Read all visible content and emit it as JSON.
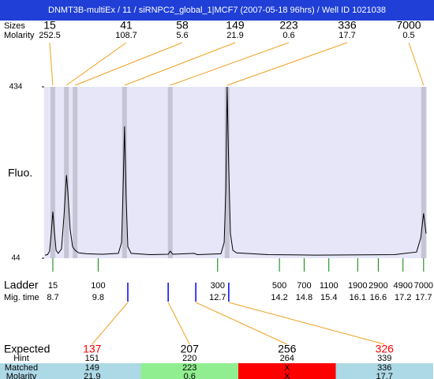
{
  "header": {
    "title": "DNMT3B-multiEx / 11 / siRNPC2_global_1|MCF7 (2007-05-18 96hrs) / Well ID 1021038"
  },
  "peaks": {
    "size_label": "Sizes",
    "molarity_label": "Molarity",
    "sizes": [
      15,
      41,
      58,
      149,
      223,
      336,
      7000
    ],
    "molarity": [
      252.5,
      108.7,
      5.6,
      21.9,
      0.6,
      17.7,
      0.5
    ],
    "times": [
      8.7,
      9.03,
      9.24,
      10.44,
      11.55,
      12.93,
      17.7
    ]
  },
  "chart_data": {
    "type": "line",
    "ylabel": "Fluo.",
    "x": [
      8.51,
      8.57,
      8.62,
      8.66,
      8.7,
      8.74,
      8.78,
      8.83,
      8.91,
      8.97,
      9.03,
      9.06,
      9.12,
      9.18,
      9.24,
      9.33,
      9.52,
      9.91,
      10.29,
      10.37,
      10.4,
      10.44,
      10.48,
      10.52,
      10.6,
      11.06,
      11.5,
      11.55,
      11.61,
      12.13,
      12.21,
      12.78,
      12.86,
      12.9,
      12.93,
      12.97,
      13.01,
      13.07,
      13.16,
      13.93,
      15.08,
      16.99,
      17.53,
      17.63,
      17.7,
      17.76
    ],
    "series": [
      {
        "color": "#000000",
        "values": [
          51,
          52,
          60,
          100,
          150,
          100,
          62,
          55,
          65,
          140,
          233,
          200,
          110,
          70,
          62,
          56,
          54,
          53,
          55,
          80,
          180,
          344,
          180,
          70,
          55,
          52,
          53,
          60,
          53,
          55,
          52,
          54,
          80,
          200,
          434,
          250,
          100,
          62,
          56,
          52,
          51,
          52,
          58,
          90,
          146,
          100
        ]
      }
    ],
    "xlim": [
      8.49,
      17.78
    ],
    "ylim": [
      44,
      434
    ],
    "yticks": [
      44,
      434
    ]
  },
  "ladder": {
    "label": "Ladder",
    "time_label": "Mig. time",
    "color": "#008000",
    "sizes": [
      15,
      100,
      300,
      500,
      700,
      1100,
      1900,
      2900,
      4900,
      7000
    ],
    "times": [
      8.7,
      9.8,
      12.7,
      14.2,
      14.8,
      15.4,
      16.1,
      16.6,
      17.2,
      17.7
    ]
  },
  "expected": {
    "label": "Expected",
    "hint_label": "Hint",
    "matched_label": "Matched",
    "molarity_label": "Molarity",
    "values": [
      137,
      207,
      256,
      326
    ],
    "colors": [
      "#ff0000",
      "#000000",
      "#000000",
      "#ff0000"
    ],
    "hints": [
      151,
      220,
      264,
      339
    ],
    "hint_times": [
      10.52,
      11.5,
      12.17,
      12.97
    ],
    "matched": [
      149,
      223,
      "X",
      336
    ],
    "molarity": [
      21.9,
      0.6,
      "X",
      17.7
    ],
    "cell_colors": [
      "#add8e6",
      "#90ee90",
      "#ff0000",
      "#add8e6"
    ]
  }
}
